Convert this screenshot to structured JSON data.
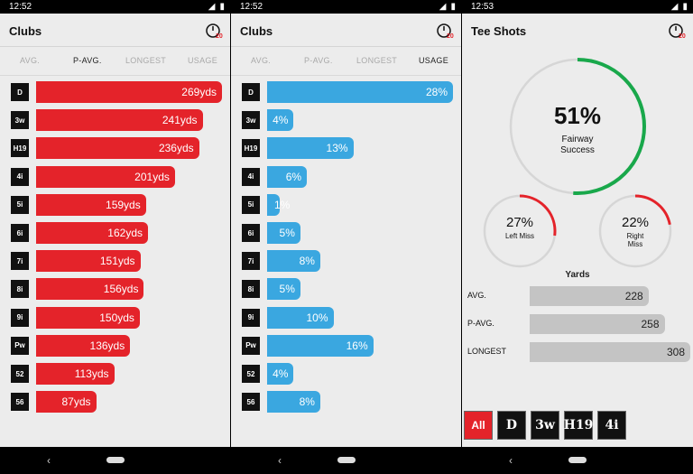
{
  "colors": {
    "red": "#e4232a",
    "blue": "#3aa7e0",
    "green": "#19a84b",
    "grey_bar": "#c4c4c4"
  },
  "panels": [
    {
      "status_time": "12:52",
      "title": "Clubs",
      "timer_badge": "20",
      "tabs": [
        "AVG.",
        "P-AVG.",
        "LONGEST",
        "USAGE"
      ],
      "active_tab": "P-AVG.",
      "unit": "yds",
      "rows": [
        {
          "club": "D",
          "value": "269yds",
          "fraction": 1.0
        },
        {
          "club": "3w",
          "value": "241yds",
          "fraction": 0.896
        },
        {
          "club": "H19",
          "value": "236yds",
          "fraction": 0.877
        },
        {
          "club": "4i",
          "value": "201yds",
          "fraction": 0.747
        },
        {
          "club": "5i",
          "value": "159yds",
          "fraction": 0.591
        },
        {
          "club": "6i",
          "value": "162yds",
          "fraction": 0.602
        },
        {
          "club": "7i",
          "value": "151yds",
          "fraction": 0.561
        },
        {
          "club": "8i",
          "value": "156yds",
          "fraction": 0.58
        },
        {
          "club": "9i",
          "value": "150yds",
          "fraction": 0.558
        },
        {
          "club": "Pw",
          "value": "136yds",
          "fraction": 0.506
        },
        {
          "club": "52",
          "value": "113yds",
          "fraction": 0.42
        },
        {
          "club": "56",
          "value": "87yds",
          "fraction": 0.323
        }
      ]
    },
    {
      "status_time": "12:52",
      "title": "Clubs",
      "timer_badge": "20",
      "tabs": [
        "AVG.",
        "P-AVG.",
        "LONGEST",
        "USAGE"
      ],
      "active_tab": "USAGE",
      "rows": [
        {
          "club": "D",
          "value": "28%",
          "fraction": 1.0
        },
        {
          "club": "3w",
          "value": "4%",
          "fraction": 0.143
        },
        {
          "club": "H19",
          "value": "13%",
          "fraction": 0.464
        },
        {
          "club": "4i",
          "value": "6%",
          "fraction": 0.214
        },
        {
          "club": "5i",
          "value": "1%",
          "fraction": 0.036
        },
        {
          "club": "6i",
          "value": "5%",
          "fraction": 0.179
        },
        {
          "club": "7i",
          "value": "8%",
          "fraction": 0.286
        },
        {
          "club": "8i",
          "value": "5%",
          "fraction": 0.179
        },
        {
          "club": "9i",
          "value": "10%",
          "fraction": 0.357
        },
        {
          "club": "Pw",
          "value": "16%",
          "fraction": 0.571
        },
        {
          "club": "52",
          "value": "4%",
          "fraction": 0.143
        },
        {
          "club": "56",
          "value": "8%",
          "fraction": 0.286
        }
      ]
    }
  ],
  "tee_shots": {
    "status_time": "12:53",
    "title": "Tee Shots",
    "timer_badge": "20",
    "fairway": {
      "value": "51%",
      "label1": "Fairway",
      "label2": "Success",
      "fraction": 0.51
    },
    "left_miss": {
      "value": "27%",
      "label": "Left Miss",
      "fraction": 0.27
    },
    "right_miss": {
      "value": "22%",
      "label1": "Right",
      "label2": "Miss",
      "fraction": 0.22
    },
    "yards_title": "Yards",
    "yards": [
      {
        "label": "AVG.",
        "value": "228",
        "fraction": 0.74
      },
      {
        "label": "P-AVG.",
        "value": "258",
        "fraction": 0.84
      },
      {
        "label": "LONGEST",
        "value": "308",
        "fraction": 1.0
      }
    ],
    "filters": [
      "All",
      "D",
      "3w",
      "H19",
      "4i"
    ],
    "active_filter": "All"
  }
}
